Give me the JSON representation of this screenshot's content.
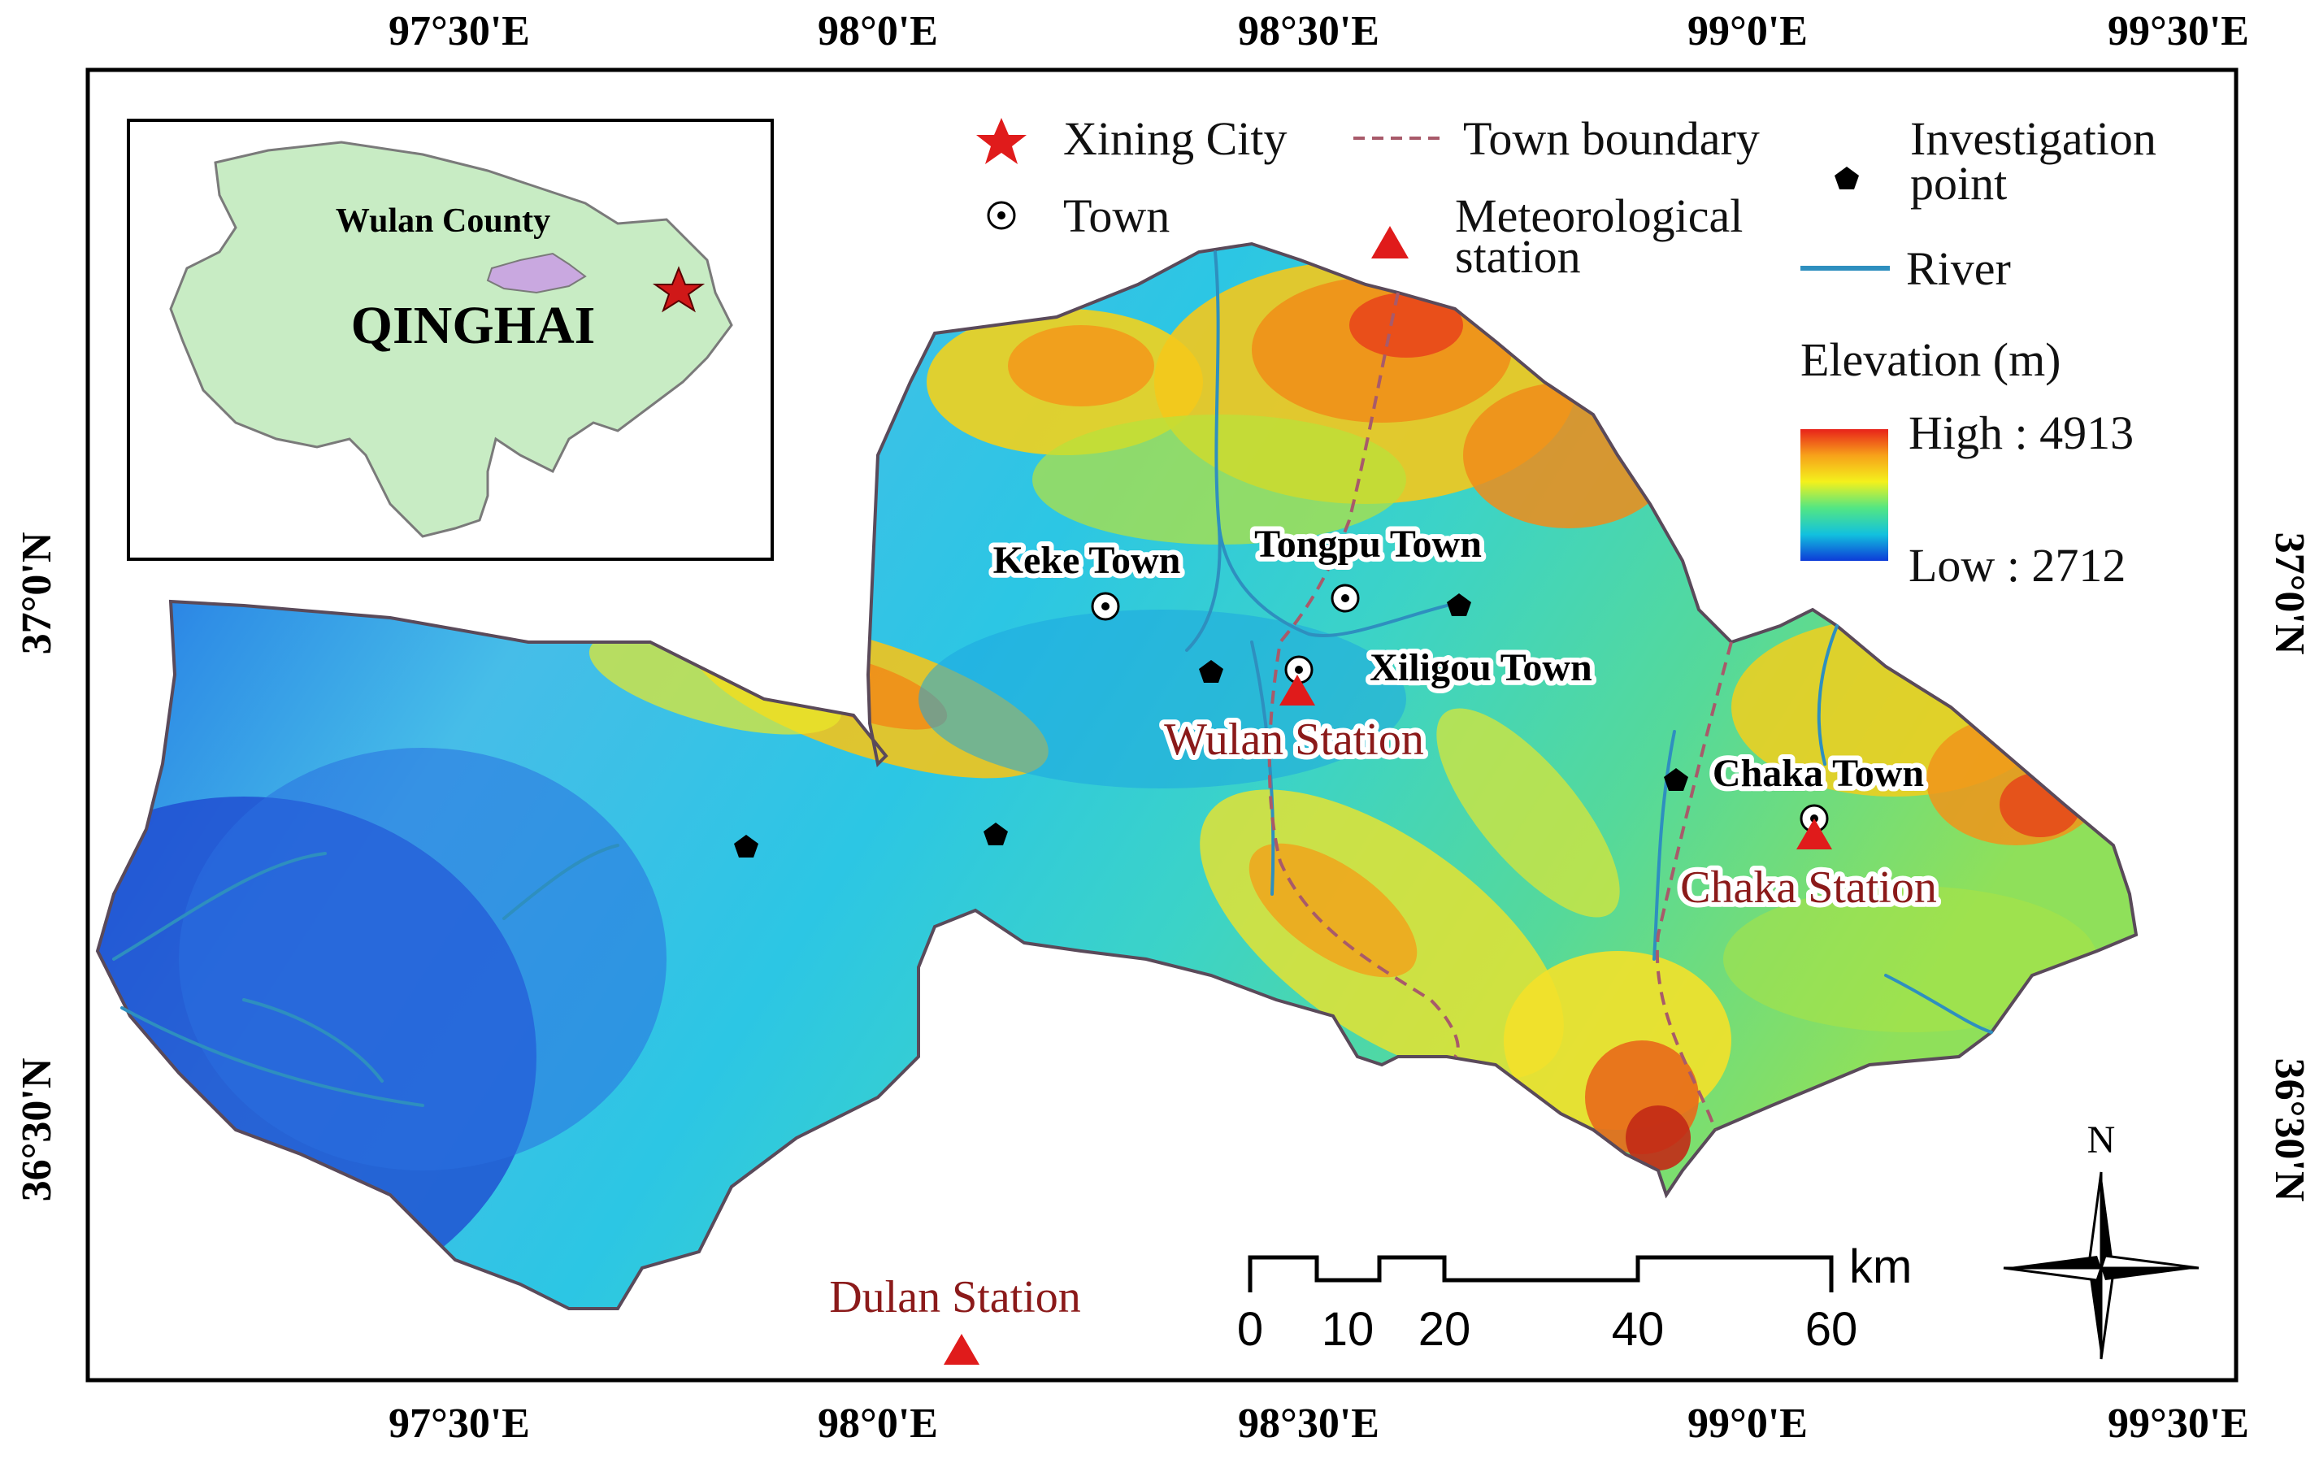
{
  "graticule": {
    "top_lon": [
      "97°30'E",
      "98°0'E",
      "98°30'E",
      "99°0'E",
      "99°30'E"
    ],
    "bottom_lon": [
      "97°30'E",
      "98°0'E",
      "98°30'E",
      "99°0'E",
      "99°30'E"
    ],
    "left_lat": [
      "37°0'N",
      "36°30'N"
    ],
    "right_lat": [
      "37°0'N",
      "36°30'N"
    ]
  },
  "inset": {
    "county_label": "Wulan County",
    "province_label": "QINGHAI",
    "province_fill": "#c8ecc4",
    "county_fill": "#c9a8e0"
  },
  "legend": {
    "capital": "Xining City",
    "town": "Town",
    "boundary": "Town boundary",
    "station_line1": "Meteorological",
    "station_line2": "station",
    "point_line1": "Investigation",
    "point_line2": "point",
    "river": "River",
    "elevation_title": "Elevation (m)",
    "high": "High : 4913",
    "low": "Low : 2712"
  },
  "towns": {
    "keke": "Keke Town",
    "tongpu": "Tongpu Town",
    "xiligou": "Xiligou Town",
    "chaka": "Chaka Town"
  },
  "stations": {
    "wulan": "Wulan Station",
    "chaka": "Chaka Station",
    "dulan": "Dulan Station"
  },
  "scale_bar": {
    "unit": "km",
    "ticks": [
      "0",
      "10",
      "20",
      "40",
      "60"
    ]
  },
  "north_arrow": {
    "label": "N"
  },
  "colors": {
    "symbol_red": "#e01b1b",
    "river": "#2e8fbf",
    "boundary": "#a85a6a",
    "station_text": "#8b1a1a"
  }
}
